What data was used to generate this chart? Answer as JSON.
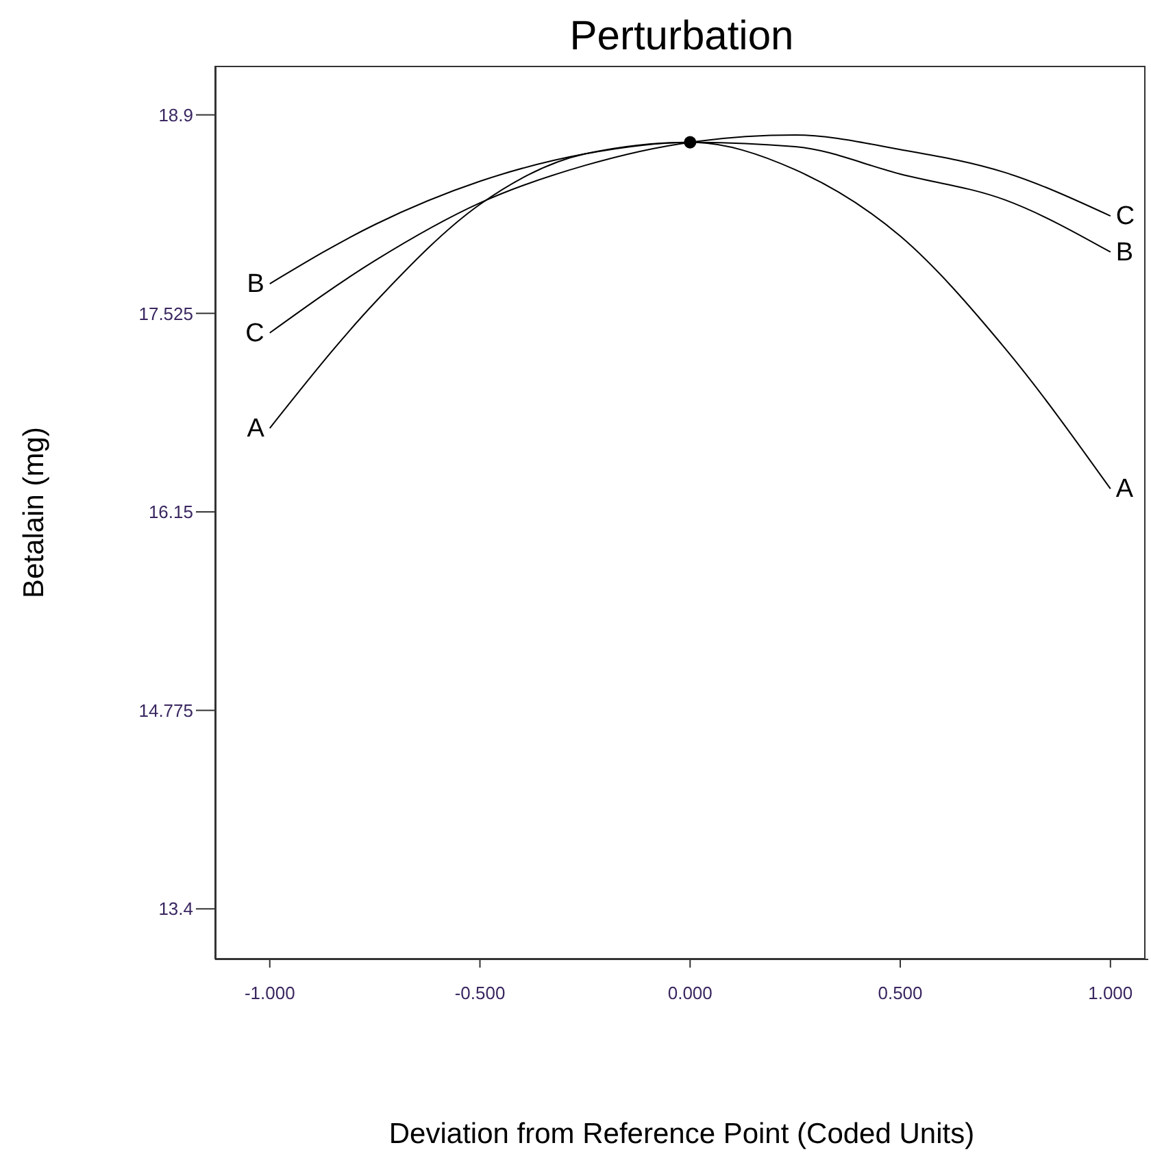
{
  "chart_data": {
    "type": "line",
    "title": "Perturbation",
    "xlabel": "Deviation from Reference Point (Coded Units)",
    "ylabel": "Betalain (mg)",
    "x": [
      -1,
      -0.75,
      -0.5,
      -0.25,
      0,
      0.25,
      0.5,
      0.75,
      1
    ],
    "series": [
      {
        "name": "A",
        "color": "#000000",
        "values": [
          16.73,
          17.6,
          18.28,
          18.63,
          18.71,
          18.52,
          18.06,
          17.28,
          16.31
        ]
      },
      {
        "name": "B",
        "color": "#000000",
        "values": [
          17.73,
          18.14,
          18.44,
          18.63,
          18.71,
          18.68,
          18.49,
          18.31,
          17.95
        ]
      },
      {
        "name": "C",
        "color": "#000000",
        "values": [
          17.39,
          17.89,
          18.29,
          18.55,
          18.71,
          18.76,
          18.66,
          18.5,
          18.2
        ]
      },
      {
        "type": "scatter",
        "color": "#000000",
        "marker": "circle",
        "x": [
          0
        ],
        "values": [
          18.71
        ]
      }
    ],
    "xlim": [
      -1.13,
      1.09
    ],
    "ylim": [
      13.05,
      19.24
    ],
    "xticks": [
      {
        "value": -1,
        "label": "-1.000"
      },
      {
        "value": -0.5,
        "label": "-0.500"
      },
      {
        "value": 0,
        "label": "0.000"
      },
      {
        "value": 0.5,
        "label": "0.500"
      },
      {
        "value": 1,
        "label": "1.000"
      }
    ],
    "yticks": [
      13.4,
      14.775,
      16.15,
      17.525,
      18.9
    ],
    "marker": "none",
    "line_style": "solid"
  }
}
